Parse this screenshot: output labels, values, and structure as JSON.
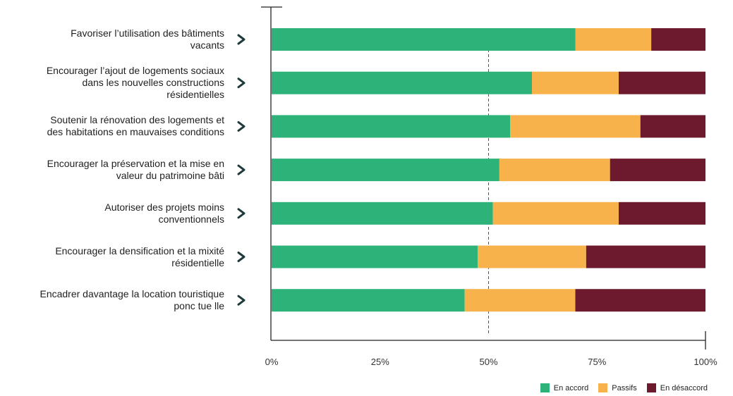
{
  "chart_data": {
    "type": "bar",
    "orientation": "horizontal",
    "stacked": true,
    "percent": true,
    "categories": [
      "Favoriser l’utilisation des bâtiments vacants",
      "Encourager l’ajout de logements sociaux dans les nouvelles constructions résidentielles",
      "Soutenir la rénovation des logements et des habitations en mauvaises conditions",
      "Encourager la préservation et la mise en valeur du patrimoine bâti",
      "Autoriser des projets moins conventionnels",
      "Encourager la densification et la mixité résidentielle",
      "Encadrer davantage la location touristique ponc tue lle"
    ],
    "category_lines": [
      [
        "Favoriser l’utilisation des bâtiments",
        "vacants"
      ],
      [
        "Encourager l’ajout de logements sociaux",
        "dans les nouvelles constructions",
        "résidentielles"
      ],
      [
        "Soutenir la rénovation des logements et",
        "des habitations en mauvaises conditions"
      ],
      [
        "Encourager la préservation et la mise en",
        "valeur du patrimoine bâti"
      ],
      [
        "Autoriser des projets moins",
        "conventionnels"
      ],
      [
        "Encourager la densification et la mixité",
        "résidentielle"
      ],
      [
        "Encadrer davantage la location touristique",
        "ponc tue lle"
      ]
    ],
    "series": [
      {
        "name": "En accord",
        "color": "#2db37a",
        "values": [
          70,
          60,
          55,
          52.5,
          51,
          47.5,
          44.5
        ]
      },
      {
        "name": "Passifs",
        "color": "#f7b24c",
        "values": [
          17.5,
          20,
          30,
          25.5,
          29,
          25,
          25.5
        ]
      },
      {
        "name": "En désaccord",
        "color": "#6e1a2e",
        "values": [
          12.5,
          20,
          15,
          22,
          20,
          27.5,
          30
        ]
      }
    ],
    "xlim": [
      0,
      100
    ],
    "xticks": [
      "0%",
      "25%",
      "50%",
      "75%",
      "100%"
    ],
    "reference_line": 50,
    "legend_position": "bottom-right",
    "grid": false
  }
}
